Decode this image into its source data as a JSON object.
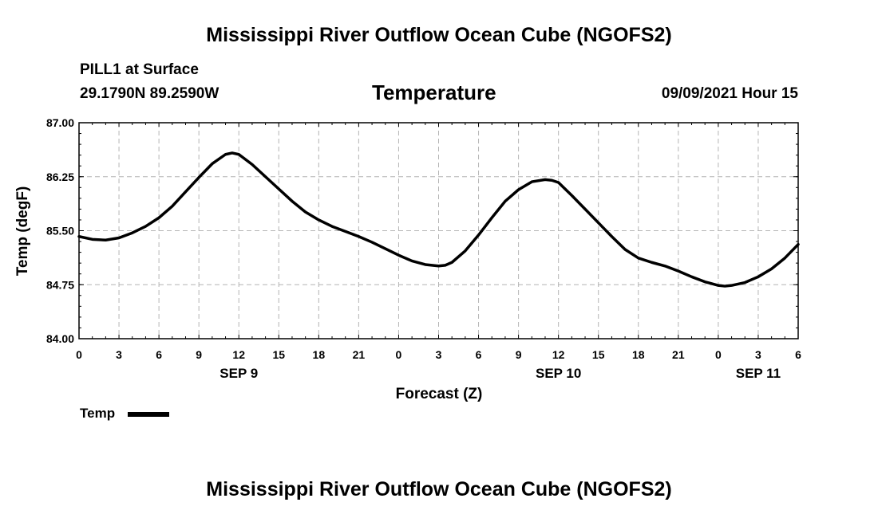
{
  "page": {
    "top_title": "Mississippi River Outflow Ocean Cube (NGOFS2)",
    "bottom_title": "Mississippi River Outflow Ocean Cube (NGOFS2)",
    "station": "PILL1 at Surface",
    "coords": "29.1790N  89.2590W",
    "datetime": "09/09/2021 Hour 15"
  },
  "colors": {
    "line": "#000000",
    "grid": "#b4b4b4",
    "frame": "#000000"
  },
  "chart_data": {
    "type": "line",
    "title": "Temperature",
    "xlabel": "Forecast (Z)",
    "ylabel": "Temp (degF)",
    "xlim": [
      0,
      54
    ],
    "ylim": [
      84.0,
      87.0
    ],
    "grid": true,
    "legend_position": "bottom-left",
    "x_ticks": [
      0,
      3,
      6,
      9,
      12,
      15,
      18,
      21,
      24,
      27,
      30,
      33,
      36,
      39,
      42,
      45,
      48,
      51,
      54
    ],
    "x_tick_labels": [
      "0",
      "3",
      "6",
      "9",
      "12",
      "15",
      "18",
      "21",
      "0",
      "3",
      "6",
      "9",
      "12",
      "15",
      "18",
      "21",
      "0",
      "3",
      "6"
    ],
    "y_ticks": [
      84.0,
      84.75,
      85.5,
      86.25,
      87.0
    ],
    "y_tick_labels": [
      "84.00",
      "84.75",
      "85.50",
      "86.25",
      "87.00"
    ],
    "day_labels": [
      {
        "x": 12,
        "label": "SEP 9"
      },
      {
        "x": 36,
        "label": "SEP 10"
      },
      {
        "x": 51,
        "label": "SEP 11"
      }
    ],
    "series": [
      {
        "name": "Temp",
        "x": [
          0,
          1,
          2,
          3,
          4,
          5,
          6,
          7,
          8,
          9,
          10,
          11,
          11.5,
          12,
          13,
          14,
          15,
          16,
          17,
          18,
          19,
          20,
          21,
          22,
          23,
          24,
          25,
          26,
          27,
          27.5,
          28,
          29,
          30,
          31,
          32,
          33,
          34,
          35,
          35.5,
          36,
          37,
          38,
          39,
          40,
          41,
          42,
          43,
          44,
          45,
          46,
          47,
          48,
          48.5,
          49,
          50,
          51,
          52,
          53,
          54
        ],
        "values": [
          85.42,
          85.38,
          85.37,
          85.4,
          85.47,
          85.56,
          85.68,
          85.84,
          86.04,
          86.24,
          86.43,
          86.56,
          86.58,
          86.56,
          86.42,
          86.25,
          86.08,
          85.91,
          85.76,
          85.65,
          85.56,
          85.49,
          85.42,
          85.34,
          85.25,
          85.16,
          85.08,
          85.03,
          85.01,
          85.02,
          85.06,
          85.22,
          85.44,
          85.68,
          85.91,
          86.07,
          86.18,
          86.21,
          86.2,
          86.17,
          85.99,
          85.8,
          85.61,
          85.42,
          85.24,
          85.12,
          85.06,
          85.01,
          84.94,
          84.86,
          84.79,
          84.74,
          84.73,
          84.74,
          84.78,
          84.86,
          84.97,
          85.12,
          85.31
        ]
      }
    ]
  }
}
